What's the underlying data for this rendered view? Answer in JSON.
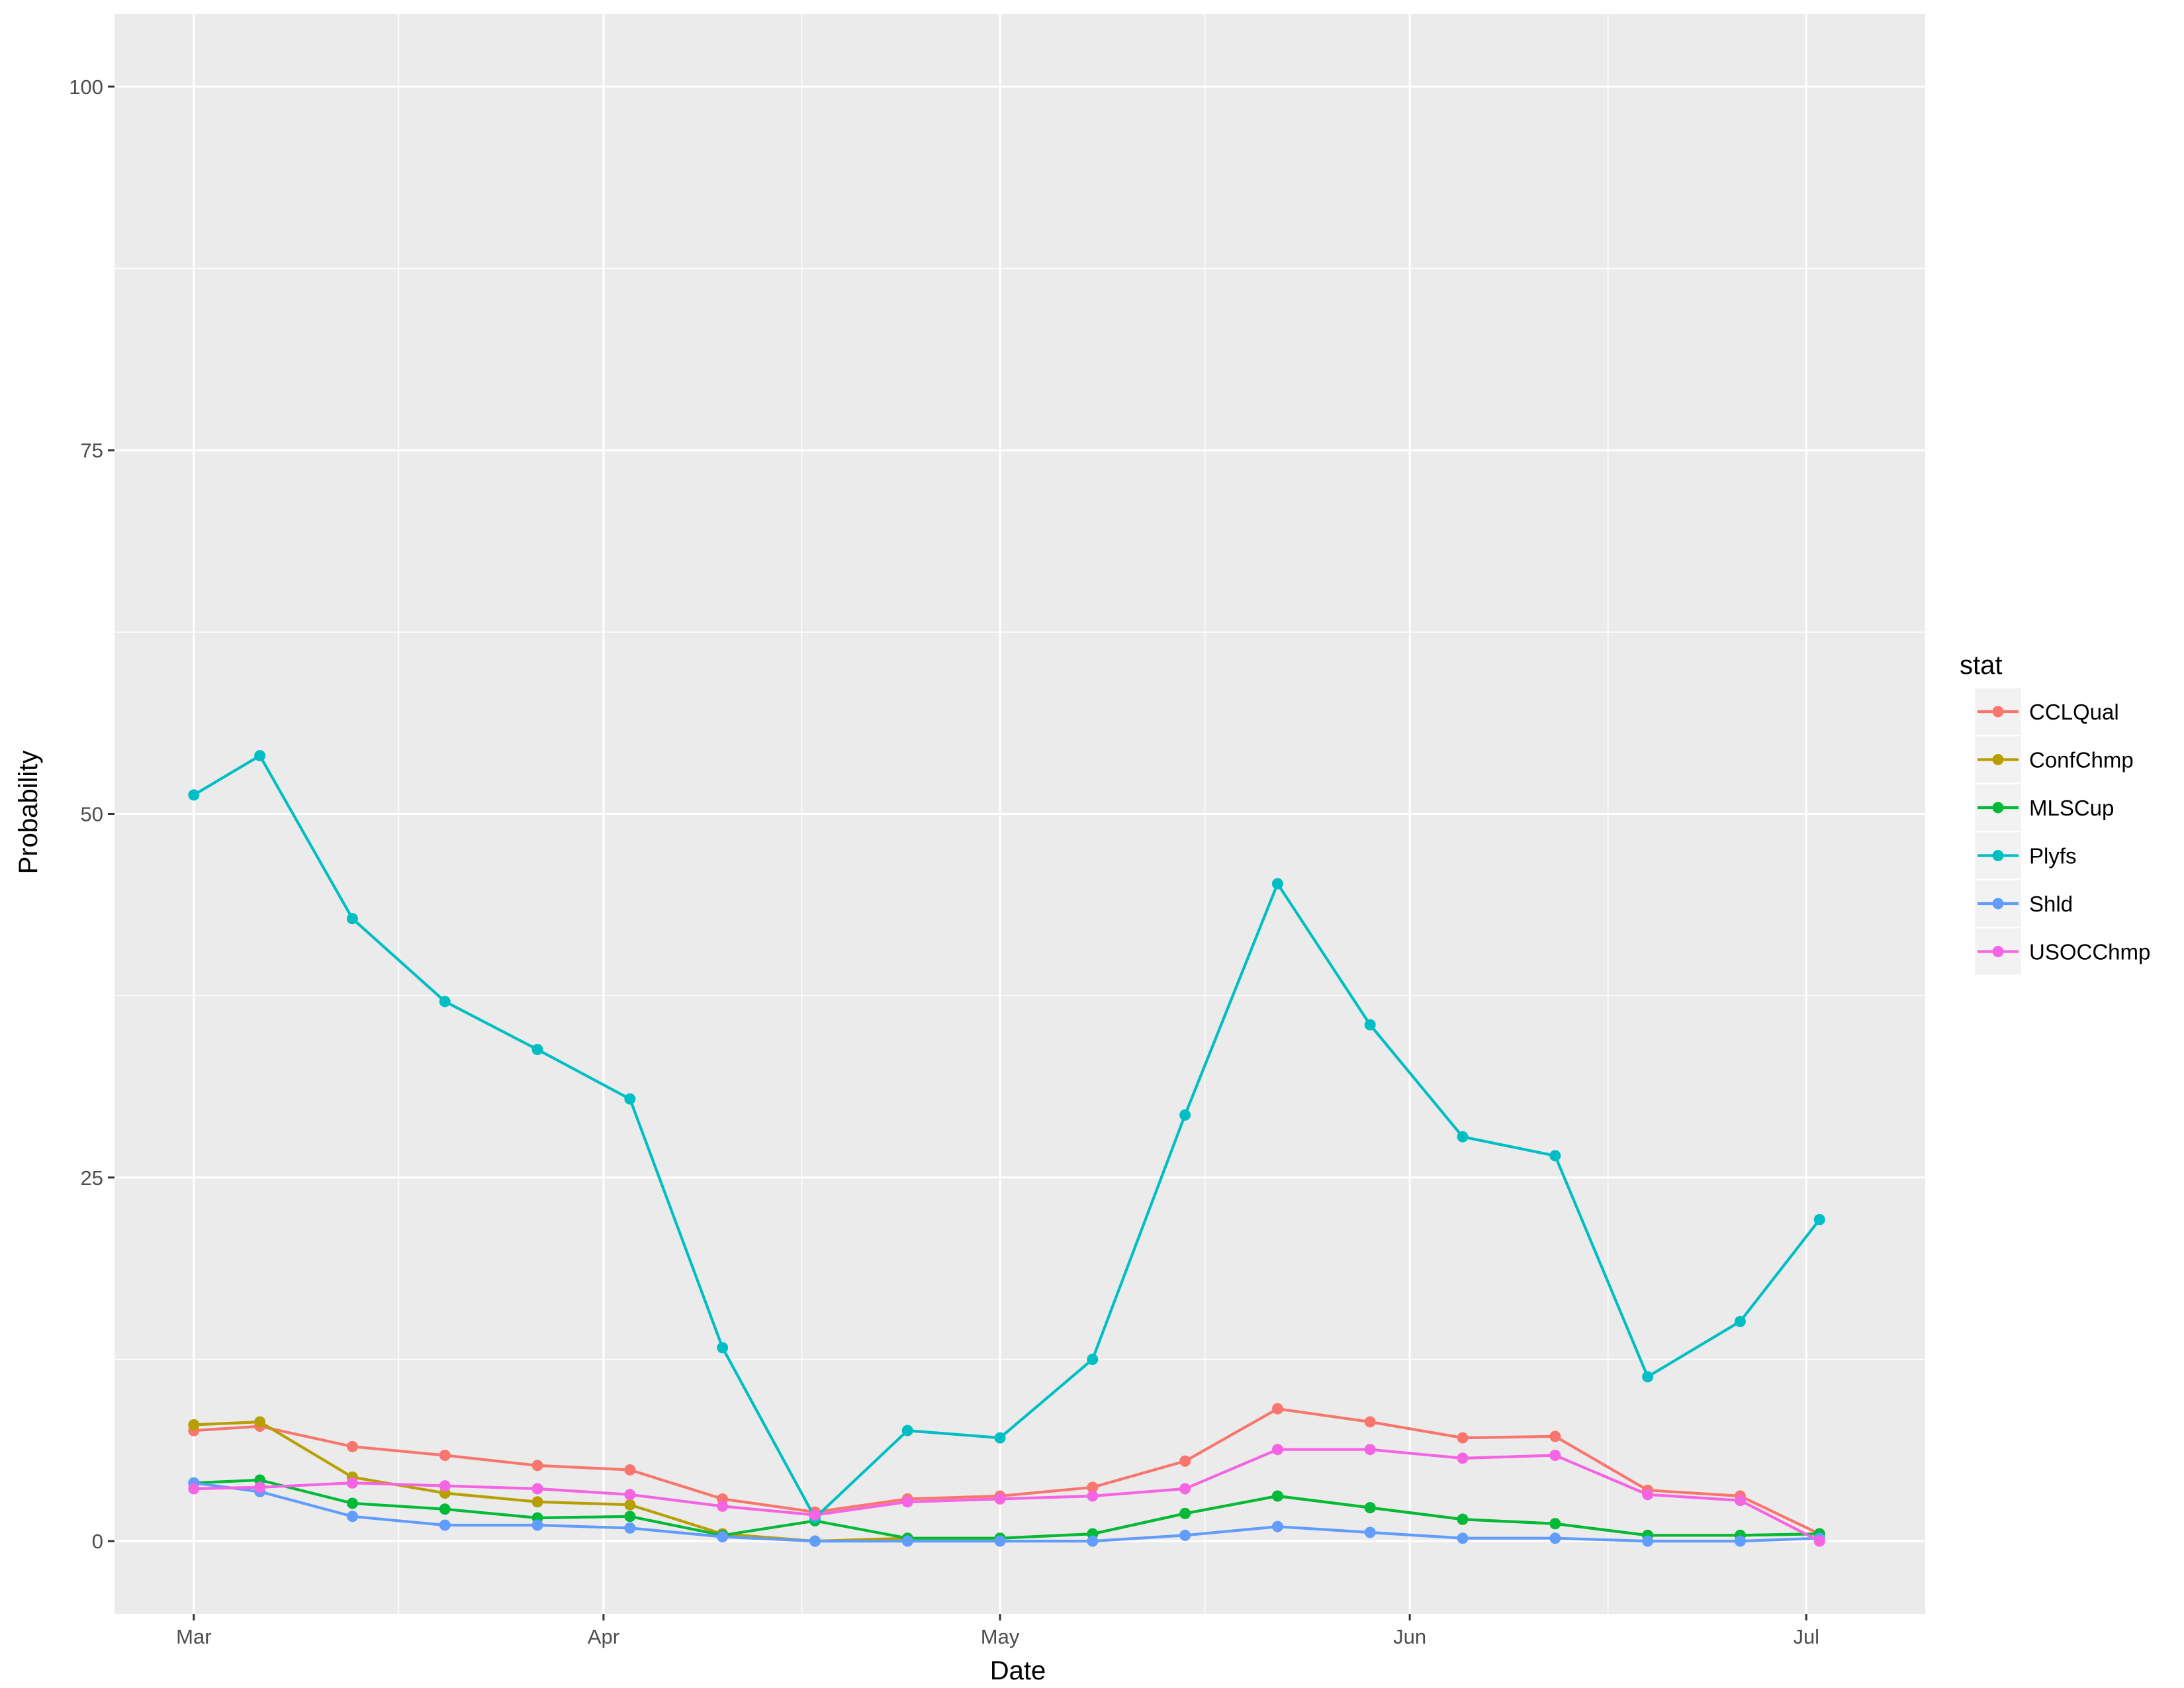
{
  "chart_data": {
    "type": "line",
    "xlabel": "Date",
    "ylabel": "Probability",
    "ylim": [
      -5,
      105
    ],
    "xlim": [
      "2017-02-23",
      "2017-07-10"
    ],
    "x_ticks": [
      {
        "date": "2017-03-01",
        "label": "Mar"
      },
      {
        "date": "2017-04-01",
        "label": "Apr"
      },
      {
        "date": "2017-05-01",
        "label": "May"
      },
      {
        "date": "2017-06-01",
        "label": "Jun"
      },
      {
        "date": "2017-07-01",
        "label": "Jul"
      }
    ],
    "y_ticks": [
      0,
      25,
      50,
      75,
      100
    ],
    "x": [
      "2017-03-01",
      "2017-03-06",
      "2017-03-13",
      "2017-03-20",
      "2017-03-27",
      "2017-04-03",
      "2017-04-10",
      "2017-04-17",
      "2017-04-24",
      "2017-05-01",
      "2017-05-08",
      "2017-05-15",
      "2017-05-22",
      "2017-05-29",
      "2017-06-05",
      "2017-06-12",
      "2017-06-19",
      "2017-06-26",
      "2017-07-02"
    ],
    "legend_title": "stat",
    "legend_position": "right",
    "grid": true,
    "series": [
      {
        "name": "CCLQual",
        "color": "#F8766D",
        "values": [
          7.6,
          7.9,
          6.5,
          5.9,
          5.2,
          4.9,
          2.9,
          2.0,
          2.9,
          3.1,
          3.7,
          5.5,
          9.1,
          8.2,
          7.1,
          7.2,
          3.5,
          3.1,
          0.5
        ]
      },
      {
        "name": "ConfChmp",
        "color": "#B79F00",
        "values": [
          8.0,
          8.2,
          4.4,
          3.3,
          2.7,
          2.5,
          0.5,
          0.0,
          0.2,
          0.2,
          0.5,
          1.9,
          3.1,
          2.3,
          1.5,
          1.2,
          0.4,
          0.4,
          0.5
        ]
      },
      {
        "name": "MLSCup",
        "color": "#00BA38",
        "values": [
          4.0,
          4.2,
          2.6,
          2.2,
          1.6,
          1.7,
          0.4,
          1.4,
          0.2,
          0.2,
          0.5,
          1.9,
          3.1,
          2.3,
          1.5,
          1.2,
          0.4,
          0.4,
          0.5
        ]
      },
      {
        "name": "Plyfs",
        "color": "#00BFC4",
        "values": [
          51.3,
          54.0,
          42.8,
          37.1,
          33.8,
          30.4,
          13.3,
          1.6,
          7.6,
          7.1,
          12.5,
          29.3,
          45.2,
          35.5,
          27.8,
          26.5,
          11.3,
          15.1,
          22.1
        ]
      },
      {
        "name": "Shld",
        "color": "#619CFF",
        "values": [
          4.0,
          3.4,
          1.7,
          1.1,
          1.1,
          0.9,
          0.3,
          0.0,
          0.0,
          0.0,
          0.0,
          0.4,
          1.0,
          0.6,
          0.2,
          0.2,
          0.0,
          0.0,
          0.2
        ]
      },
      {
        "name": "USOCChmp",
        "color": "#F564E3",
        "values": [
          3.6,
          3.7,
          4.0,
          3.8,
          3.6,
          3.2,
          2.4,
          1.8,
          2.7,
          2.9,
          3.1,
          3.6,
          6.3,
          6.3,
          5.7,
          5.9,
          3.2,
          2.8,
          0.0
        ]
      }
    ]
  }
}
